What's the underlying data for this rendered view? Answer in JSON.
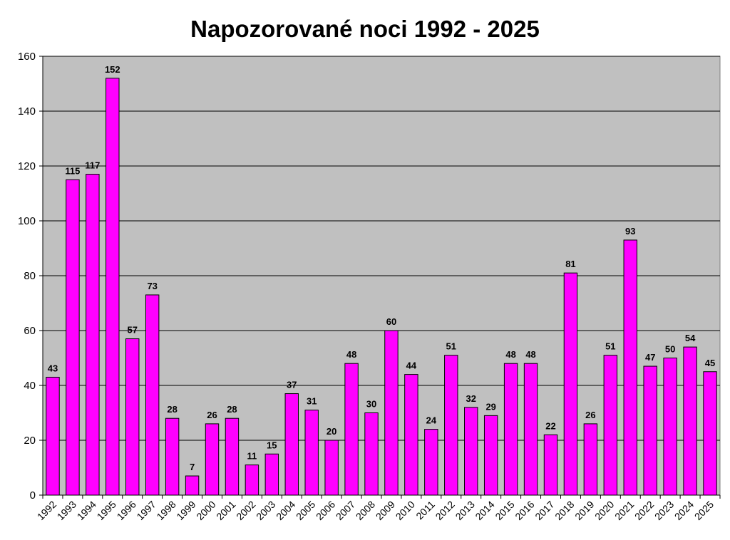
{
  "chart_data": {
    "type": "bar",
    "title": "Napozorované noci 1992 - 2025",
    "xlabel": "",
    "ylabel": "",
    "ylim": [
      0,
      160
    ],
    "yticks": [
      0,
      20,
      40,
      60,
      80,
      100,
      120,
      140,
      160
    ],
    "grid": true,
    "legend": "none",
    "categories": [
      "1992",
      "1993",
      "1994",
      "1995",
      "1996",
      "1997",
      "1998",
      "1999",
      "2000",
      "2001",
      "2002",
      "2003",
      "2004",
      "2005",
      "2006",
      "2007",
      "2008",
      "2009",
      "2010",
      "2011",
      "2012",
      "2013",
      "2014",
      "2015",
      "2016",
      "2017",
      "2018",
      "2019",
      "2020",
      "2021",
      "2022",
      "2023",
      "2024",
      "2025"
    ],
    "values": [
      43,
      115,
      117,
      152,
      57,
      73,
      28,
      7,
      26,
      28,
      11,
      15,
      37,
      31,
      20,
      48,
      30,
      60,
      44,
      24,
      51,
      32,
      29,
      48,
      48,
      22,
      81,
      26,
      51,
      93,
      47,
      50,
      54,
      45
    ],
    "bar_color": "#ff00ff",
    "plot_background": "#c0c0c0"
  }
}
